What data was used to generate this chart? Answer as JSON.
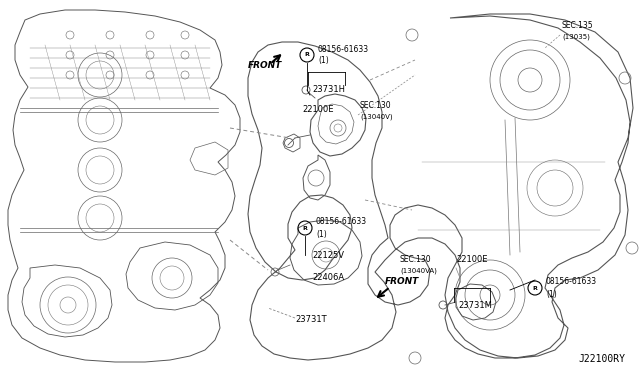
{
  "background_color": "#ffffff",
  "diagram_id": "J22100RY",
  "text_color": "#333333",
  "line_color": "#444444",
  "labels_top_center": {
    "bolt_label": "08156-61633",
    "bolt_sub": "(1)",
    "part1": "23731H",
    "part2": "22100E",
    "sec130v": "SEC.130",
    "sec130v_sub": "(13040V)"
  },
  "labels_bottom_center": {
    "bolt_label": "08156-61633",
    "bolt_sub": "(1)",
    "part1": "22125V",
    "part2": "22406A",
    "part3": "23731T"
  },
  "labels_right": {
    "sec135": "SEC.135",
    "sec135_sub": "(13035)",
    "sec130va": "SEC.130",
    "sec130va_sub": "(13040VA)",
    "part1": "22100E",
    "bolt_label": "08156-61633",
    "bolt_sub": "(1)",
    "part2": "23731M"
  },
  "front_top": "FRONT",
  "front_bottom": "FRONT"
}
